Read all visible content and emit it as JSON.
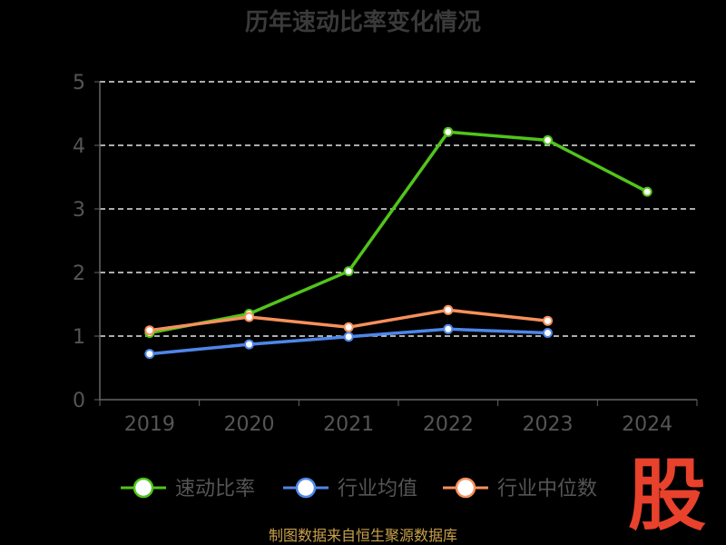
{
  "chart_data": {
    "type": "line",
    "title": "历年速动比率变化情况",
    "categories": [
      "2019",
      "2020",
      "2021",
      "2022",
      "2023",
      "2024"
    ],
    "ylim": [
      0,
      5
    ],
    "yticks": [
      "0",
      "1",
      "2",
      "3",
      "4",
      "5"
    ],
    "grid": true,
    "legend_position": "bottom",
    "series": [
      {
        "name": "速动比率",
        "color": "#52c41a",
        "values": [
          1.05,
          1.35,
          2.02,
          4.21,
          4.08,
          3.27
        ]
      },
      {
        "name": "行业均值",
        "color": "#4f86e8",
        "values": [
          0.72,
          0.87,
          0.99,
          1.11,
          1.05,
          null
        ]
      },
      {
        "name": "行业中位数",
        "color": "#f7905c",
        "values": [
          1.09,
          1.3,
          1.14,
          1.41,
          1.24,
          null
        ]
      }
    ]
  },
  "source_note": "制图数据来自恒生聚源数据库",
  "watermark": "股"
}
